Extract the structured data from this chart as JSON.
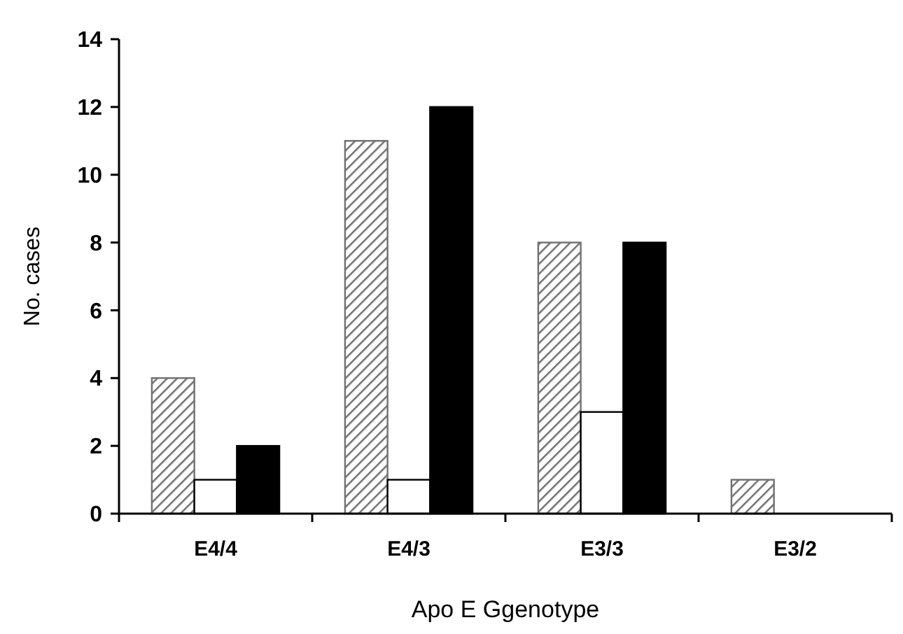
{
  "chart_data": {
    "type": "bar",
    "xlabel": "Apo E Ggenotype",
    "ylabel": "No. cases",
    "categories": [
      "E4/4",
      "E4/3",
      "E3/3",
      "E3/2"
    ],
    "series": [
      {
        "color": "#707070",
        "values": [
          4,
          11,
          8,
          1
        ]
      },
      {
        "color": "#ffffff",
        "values": [
          1,
          1,
          3,
          0
        ]
      },
      {
        "color": "#000000",
        "values": [
          2,
          12,
          8,
          0
        ]
      }
    ],
    "ylim": [
      0,
      14
    ],
    "yticks": [
      0,
      2,
      4,
      6,
      8,
      10,
      12,
      14
    ],
    "grid": false
  }
}
